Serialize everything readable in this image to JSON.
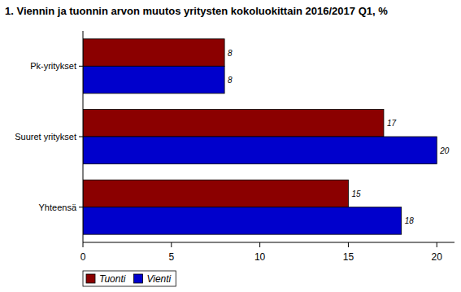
{
  "chart_data": {
    "type": "bar",
    "orientation": "horizontal",
    "title": "1. Viennin ja tuonnin arvon muutos yritysten kokoluokittain 2016/2017 Q1, %",
    "categories": [
      "Pk-yritykset",
      "Suuret yritykset",
      "Yhteensä"
    ],
    "series": [
      {
        "name": "Tuonti",
        "color": "#8b0000",
        "values": [
          8,
          17,
          15
        ]
      },
      {
        "name": "Vienti",
        "color": "#0000cc",
        "values": [
          8,
          20,
          18
        ]
      }
    ],
    "xlim": [
      0,
      21
    ],
    "xticks": [
      0,
      5,
      10,
      15,
      20
    ],
    "grid": false,
    "data_labels": true,
    "legend": "bottom"
  }
}
